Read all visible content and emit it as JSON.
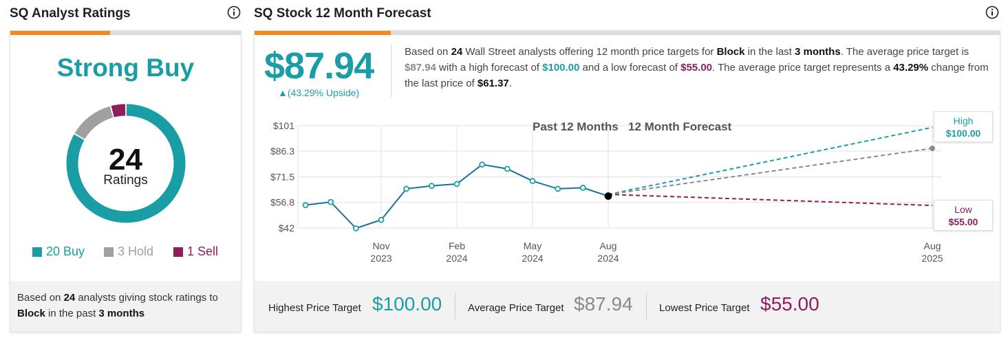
{
  "left": {
    "title": "SQ Analyst Ratings",
    "consensus": "Strong Buy",
    "total": "24",
    "total_label": "Ratings",
    "legend": [
      {
        "label": "20 Buy",
        "count": 20,
        "color": "#1a9ea6"
      },
      {
        "label": "3 Hold",
        "count": 3,
        "color": "#a0a0a0"
      },
      {
        "label": "1 Sell",
        "count": 1,
        "color": "#8e1e5c"
      }
    ],
    "footer": {
      "p1": "Based on ",
      "analysts": "24",
      "p2": " analysts giving stock ratings to",
      "company": "Block",
      "p3": " in the past ",
      "period": "3 months"
    }
  },
  "right": {
    "title": "SQ Stock 12 Month Forecast",
    "price": "$87.94",
    "upside": "▲(43.29% Upside)",
    "summary": {
      "s1": "Based on ",
      "analysts": "24",
      "s2": " Wall Street analysts offering 12 month price targets for ",
      "company": "Block",
      "s3": " in the last ",
      "period": "3 months",
      "s4": ". The average price target is ",
      "avg": "$87.94",
      "s5": " with a high forecast of ",
      "high": "$100.00",
      "s6": " and a low forecast of ",
      "low": "$55.00",
      "s7": ". The average price target represents a ",
      "change": "43.29%",
      "s8": " change from the last price of ",
      "last": "$61.37",
      "s9": "."
    },
    "callouts": {
      "high_label": "High",
      "high_value": "$100.00",
      "low_label": "Low",
      "low_value": "$55.00"
    },
    "footer": {
      "highest_label": "Highest Price Target",
      "highest_value": "$100.00",
      "average_label": "Average Price Target",
      "average_value": "$87.94",
      "lowest_label": "Lowest Price Target",
      "lowest_value": "$55.00"
    }
  },
  "chart_data": [
    {
      "type": "pie",
      "categories": [
        "Buy",
        "Hold",
        "Sell"
      ],
      "values": [
        20,
        3,
        1
      ],
      "colors": [
        "#1a9ea6",
        "#a0a0a0",
        "#8e1e5c"
      ]
    },
    {
      "type": "line",
      "headings": [
        "Past 12 Months",
        "12 Month Forecast"
      ],
      "y_ticks": [
        "$101",
        "$86.3",
        "$71.5",
        "$56.8",
        "$42"
      ],
      "y_tick_values": [
        101,
        86.3,
        71.5,
        56.8,
        42
      ],
      "ylim": [
        42,
        101
      ],
      "x_ticks": [
        {
          "line1": "Nov",
          "line2": "2023"
        },
        {
          "line1": "Feb",
          "line2": "2024"
        },
        {
          "line1": "May",
          "line2": "2024"
        },
        {
          "line1": "Aug",
          "line2": "2024"
        },
        {
          "line1": "Aug",
          "line2": "2025"
        }
      ],
      "grid": true,
      "series": [
        {
          "role": "history",
          "color": "#1a6f9e",
          "values": [
            55.2,
            57.0,
            41.8,
            46.7,
            64.6,
            66.3,
            67.4,
            78.6,
            76.1,
            69.1,
            64.6,
            65.2,
            60.4
          ]
        }
      ],
      "forecast": {
        "start": 61.37,
        "high": 100.0,
        "average": 87.94,
        "low": 55.0,
        "colors": {
          "high": "#1a9ea6",
          "average": "#8a8a8a",
          "low": "#8e1e5c"
        }
      }
    }
  ]
}
